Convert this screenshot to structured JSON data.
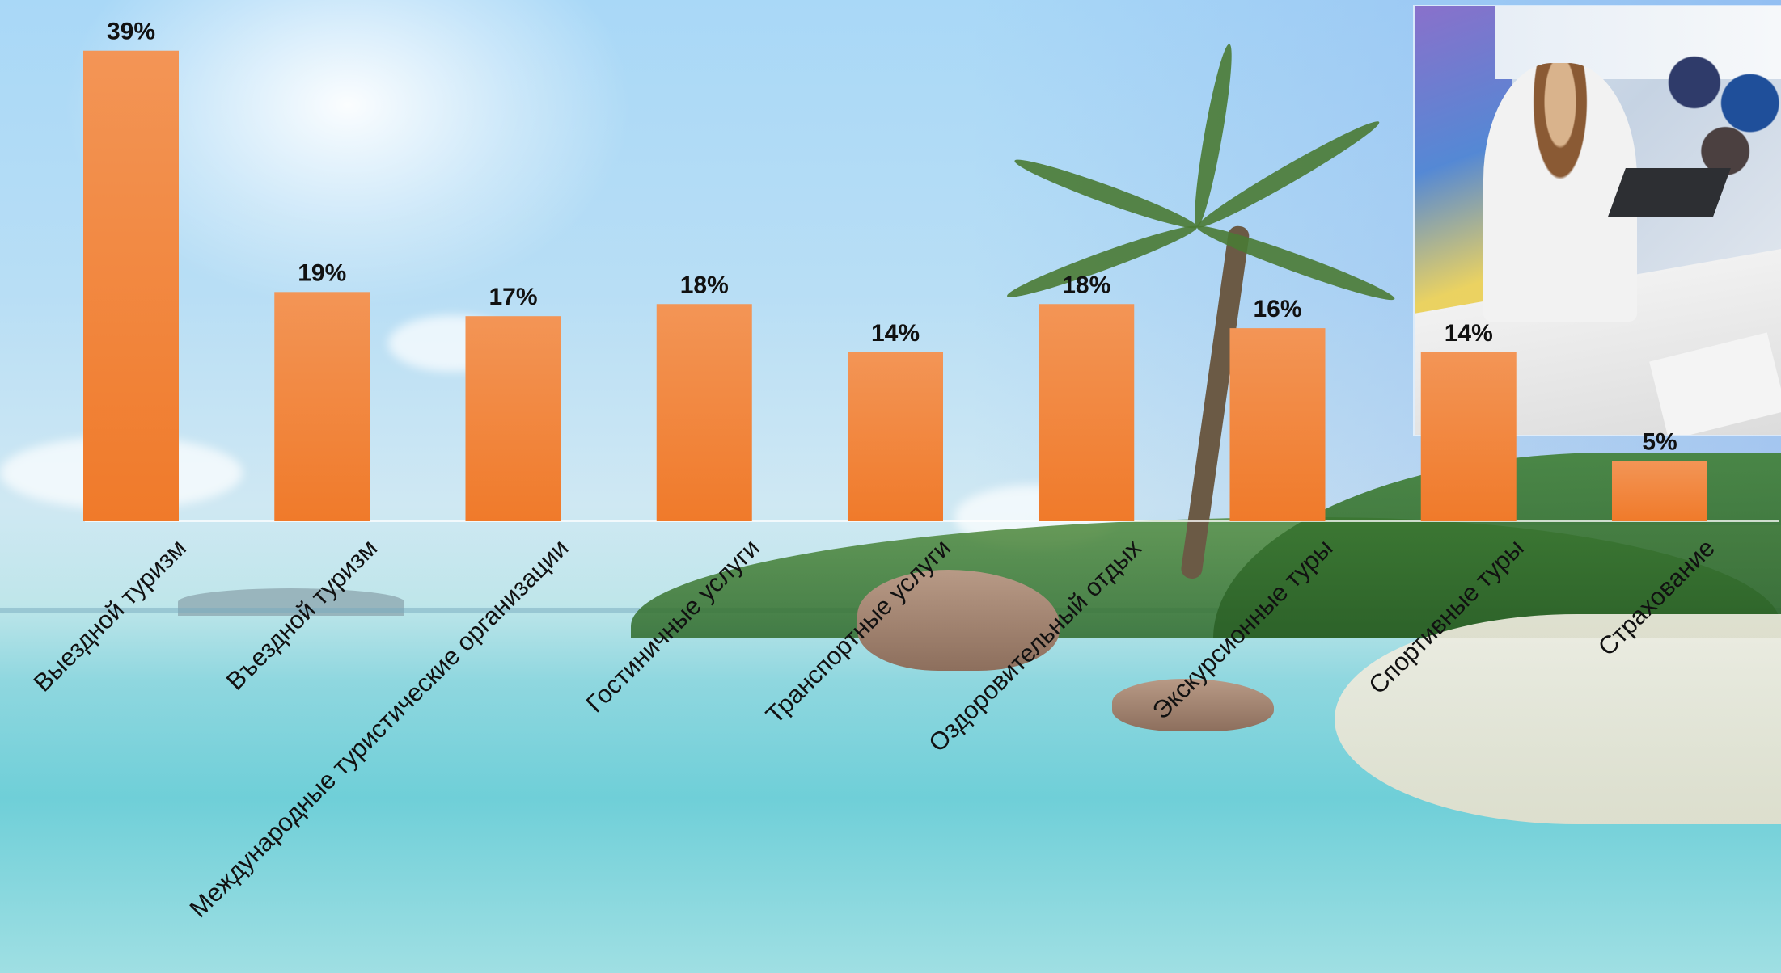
{
  "chart_data": {
    "type": "bar",
    "categories": [
      "Выездной туризм",
      "Въездной туризм",
      "Международные туристические организации",
      "Гостиничные услуги",
      "Транспортные услуги",
      "Оздоровительный отдых",
      "Экскурсионные туры",
      "Спортивные туры",
      "Страхование"
    ],
    "values": [
      39,
      19,
      17,
      18,
      14,
      18,
      16,
      14,
      5
    ],
    "data_labels": [
      "39%",
      "19%",
      "17%",
      "18%",
      "14%",
      "18%",
      "16%",
      "14%",
      "5%"
    ],
    "value_unit": "%",
    "ylim": [
      0,
      40
    ],
    "grid": false,
    "legend": "none",
    "bar_color": "#f07a2a",
    "bar_color_light": "#f39556"
  }
}
